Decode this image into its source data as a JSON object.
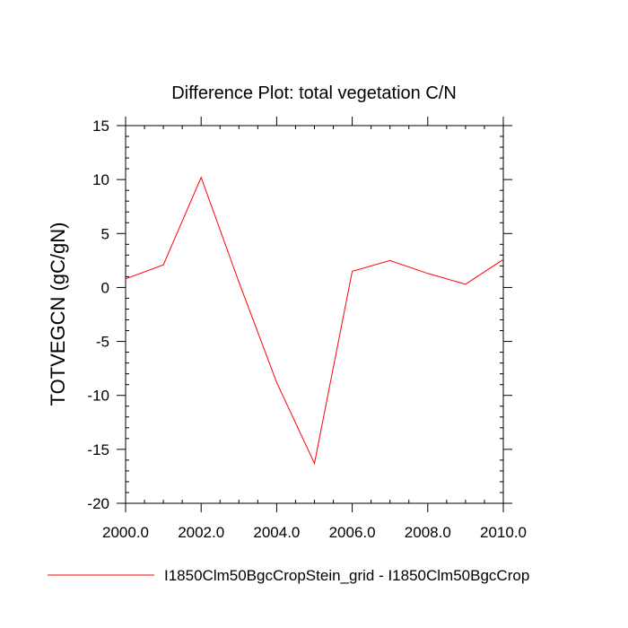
{
  "chart_data": {
    "type": "line",
    "title": "Difference Plot: total vegetation C/N",
    "xlabel": "",
    "ylabel": "TOTVEGCN  (gC/gN)",
    "xlim": [
      2000,
      2010
    ],
    "ylim": [
      -20,
      15
    ],
    "x_ticks": [
      2000,
      2002,
      2004,
      2006,
      2008,
      2010
    ],
    "x_tick_labels": [
      "2000.0",
      "2002.0",
      "2004.0",
      "2006.0",
      "2008.0",
      "2010.0"
    ],
    "y_ticks": [
      15,
      10,
      5,
      0,
      -5,
      -10,
      -15,
      -20
    ],
    "y_tick_labels": [
      "15",
      "10",
      "5",
      "0",
      "-5",
      "-10",
      "-15",
      "-20"
    ],
    "grid": false,
    "legend_position": "bottom",
    "series": [
      {
        "name": "I1850Clm50BgcCropStein_grid - I1850Clm50BgcCrop",
        "color": "#ff0000",
        "x": [
          2000,
          2001,
          2002,
          2003,
          2004,
          2005,
          2006,
          2007,
          2008,
          2009,
          2010
        ],
        "values": [
          0.8,
          2.1,
          10.2,
          0.5,
          -8.8,
          -16.3,
          1.5,
          2.5,
          1.3,
          0.3,
          2.6
        ]
      }
    ]
  }
}
